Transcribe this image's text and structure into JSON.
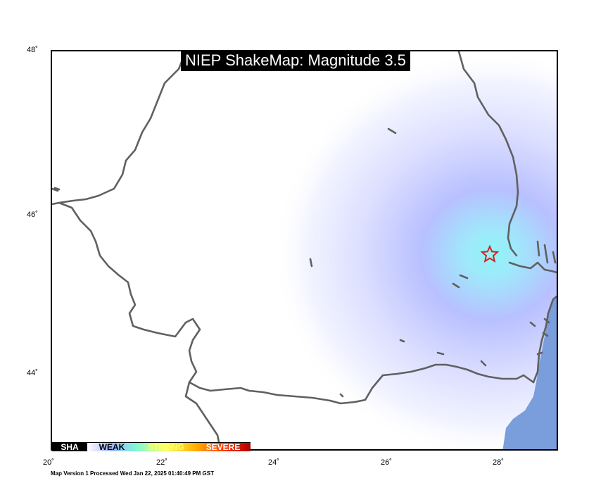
{
  "title": "NIEP ShakeMap: Magnitude 3.5",
  "footer": "Map Version 1 Processed Wed Jan 22, 2025 01:40:49 PM GST",
  "axes": {
    "lat_labels": [
      "48˚",
      "46˚",
      "44˚"
    ],
    "lon_labels": [
      "20˚",
      "22˚",
      "24˚",
      "26˚",
      "28˚"
    ]
  },
  "epicenter": {
    "lon": 27.8,
    "lat": 45.5,
    "marker": "star-icon"
  },
  "legend": {
    "segments": [
      {
        "label": "SHAKING",
        "visible_text": "SHA",
        "bg": "#000000",
        "fg": "#ffffff"
      },
      {
        "label": "WEAK",
        "visible_text": "WEAK",
        "bg": "#9fb4ff",
        "fg": "#000000"
      },
      {
        "label": "STRONG",
        "visible_text": "STRONG",
        "bg": "#7ff9d6",
        "fg": "#ffff66"
      },
      {
        "label": "SEVERE",
        "visible_text": "SEVERE",
        "bg": "#ff6a00",
        "fg": "#ffffff"
      }
    ]
  },
  "colors": {
    "border_lines": "#606060",
    "sea": "#7a9ddb",
    "shaking_core": "#8ff5f5",
    "shaking_halo": "#b8c0ff",
    "epicenter": "#d92020"
  }
}
